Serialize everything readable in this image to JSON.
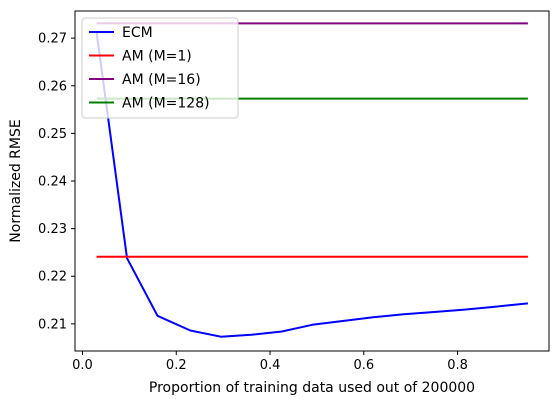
{
  "chart_data": {
    "type": "line",
    "title": "",
    "xlabel": "Proportion of training data used out of 200000",
    "ylabel": "Normalized RMSE",
    "xlim": [
      -0.016,
      0.995
    ],
    "ylim": [
      0.2043,
      0.2757
    ],
    "xticks": [
      0.0,
      0.2,
      0.4,
      0.6,
      0.8
    ],
    "xtick_labels": [
      "0.0",
      "0.2",
      "0.4",
      "0.6",
      "0.8"
    ],
    "yticks": [
      0.21,
      0.22,
      0.23,
      0.24,
      0.25,
      0.26,
      0.27
    ],
    "ytick_labels": [
      "0.21",
      "0.22",
      "0.23",
      "0.24",
      "0.25",
      "0.26",
      "0.27"
    ],
    "grid": false,
    "legend_position": "top-left",
    "series": [
      {
        "name": "ECM",
        "color": "#0000ff",
        "x": [
          0.03,
          0.095,
          0.16,
          0.23,
          0.295,
          0.36,
          0.425,
          0.49,
          0.555,
          0.62,
          0.685,
          0.75,
          0.815,
          0.88,
          0.95
        ],
        "y": [
          0.2712,
          0.2238,
          0.2117,
          0.2086,
          0.2073,
          0.2077,
          0.2084,
          0.2098,
          0.2106,
          0.2114,
          0.212,
          0.2125,
          0.213,
          0.2136,
          0.2143
        ]
      },
      {
        "name": "AM (M=1)",
        "color": "#ff0000",
        "x": [
          0.03,
          0.95
        ],
        "y": [
          0.2241,
          0.2241
        ]
      },
      {
        "name": "AM (M=16)",
        "color": "#800080",
        "x": [
          0.03,
          0.95
        ],
        "y": [
          0.2731,
          0.2731
        ]
      },
      {
        "name": "AM (M=128)",
        "color": "#008000",
        "x": [
          0.03,
          0.95
        ],
        "y": [
          0.2573,
          0.2573
        ]
      }
    ]
  }
}
